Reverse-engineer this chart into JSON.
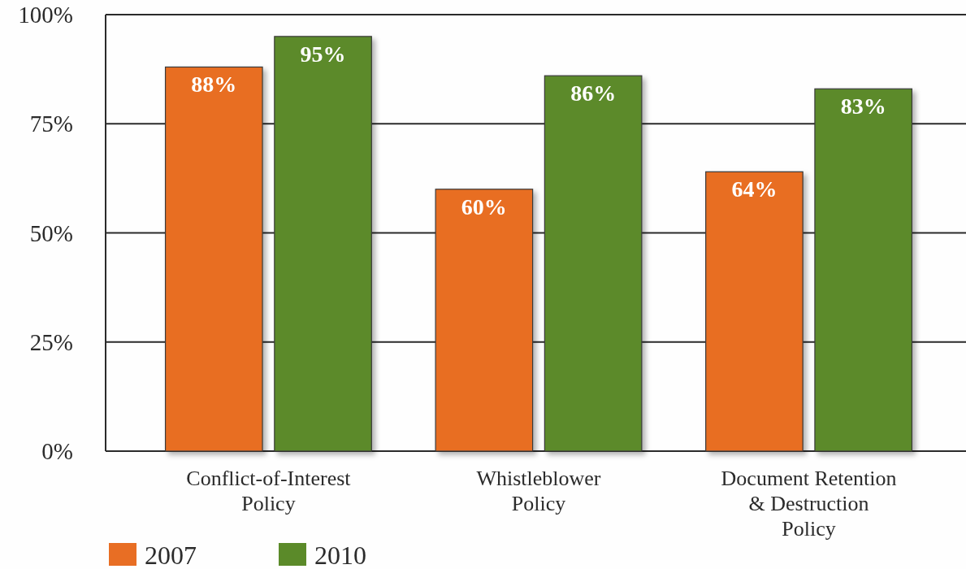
{
  "chart_data": {
    "type": "bar",
    "categories": [
      "Conflict-of-Interest\nPolicy",
      "Whistleblower\nPolicy",
      "Document Retention\n& Destruction\nPolicy"
    ],
    "series": [
      {
        "name": "2007",
        "color": "#e86e24",
        "values": [
          88,
          60,
          64
        ],
        "value_labels": [
          "88%",
          "60%",
          "64%"
        ]
      },
      {
        "name": "2010",
        "color": "#5b8a29",
        "values": [
          95,
          86,
          83
        ],
        "value_labels": [
          "95%",
          "86%",
          "83%"
        ]
      }
    ],
    "ylim": [
      0,
      100
    ],
    "yticks": [
      {
        "value": 0,
        "label": "0%"
      },
      {
        "value": 25,
        "label": "25%"
      },
      {
        "value": 50,
        "label": "50%"
      },
      {
        "value": 75,
        "label": "75%"
      },
      {
        "value": 100,
        "label": "100%"
      }
    ],
    "grid": "y",
    "legend": "bottom left"
  }
}
